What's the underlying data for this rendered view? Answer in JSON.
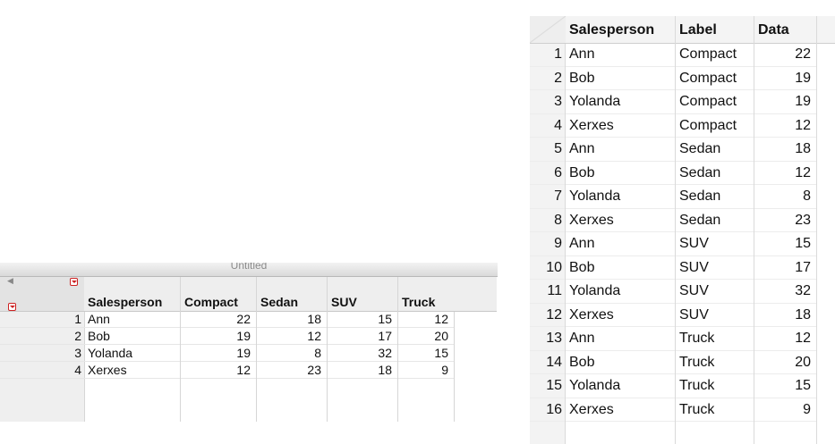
{
  "left_window": {
    "title": "Untitled",
    "columns": [
      "Salesperson",
      "Compact",
      "Sedan",
      "SUV",
      "Truck"
    ],
    "rows": [
      {
        "n": "1",
        "salesperson": "Ann",
        "compact": "22",
        "sedan": "18",
        "suv": "15",
        "truck": "12"
      },
      {
        "n": "2",
        "salesperson": "Bob",
        "compact": "19",
        "sedan": "12",
        "suv": "17",
        "truck": "20"
      },
      {
        "n": "3",
        "salesperson": "Yolanda",
        "compact": "19",
        "sedan": "8",
        "suv": "32",
        "truck": "15"
      },
      {
        "n": "4",
        "salesperson": "Xerxes",
        "compact": "12",
        "sedan": "23",
        "suv": "18",
        "truck": "9"
      }
    ]
  },
  "right_table": {
    "columns": [
      "Salesperson",
      "Label",
      "Data"
    ],
    "rows": [
      {
        "n": "1",
        "salesperson": "Ann",
        "label": "Compact",
        "data": "22"
      },
      {
        "n": "2",
        "salesperson": "Bob",
        "label": "Compact",
        "data": "19"
      },
      {
        "n": "3",
        "salesperson": "Yolanda",
        "label": "Compact",
        "data": "19"
      },
      {
        "n": "4",
        "salesperson": "Xerxes",
        "label": "Compact",
        "data": "12"
      },
      {
        "n": "5",
        "salesperson": "Ann",
        "label": "Sedan",
        "data": "18"
      },
      {
        "n": "6",
        "salesperson": "Bob",
        "label": "Sedan",
        "data": "12"
      },
      {
        "n": "7",
        "salesperson": "Yolanda",
        "label": "Sedan",
        "data": "8"
      },
      {
        "n": "8",
        "salesperson": "Xerxes",
        "label": "Sedan",
        "data": "23"
      },
      {
        "n": "9",
        "salesperson": "Ann",
        "label": "SUV",
        "data": "15"
      },
      {
        "n": "10",
        "salesperson": "Bob",
        "label": "SUV",
        "data": "17"
      },
      {
        "n": "11",
        "salesperson": "Yolanda",
        "label": "SUV",
        "data": "32"
      },
      {
        "n": "12",
        "salesperson": "Xerxes",
        "label": "SUV",
        "data": "18"
      },
      {
        "n": "13",
        "salesperson": "Ann",
        "label": "Truck",
        "data": "12"
      },
      {
        "n": "14",
        "salesperson": "Bob",
        "label": "Truck",
        "data": "20"
      },
      {
        "n": "15",
        "salesperson": "Yolanda",
        "label": "Truck",
        "data": "15"
      },
      {
        "n": "16",
        "salesperson": "Xerxes",
        "label": "Truck",
        "data": "9"
      }
    ]
  },
  "icons": {
    "collapse": "collapse-triangle-icon",
    "menu": "red-menu-triangle-icon"
  },
  "colors": {
    "menu_accent": "#cc2222"
  }
}
